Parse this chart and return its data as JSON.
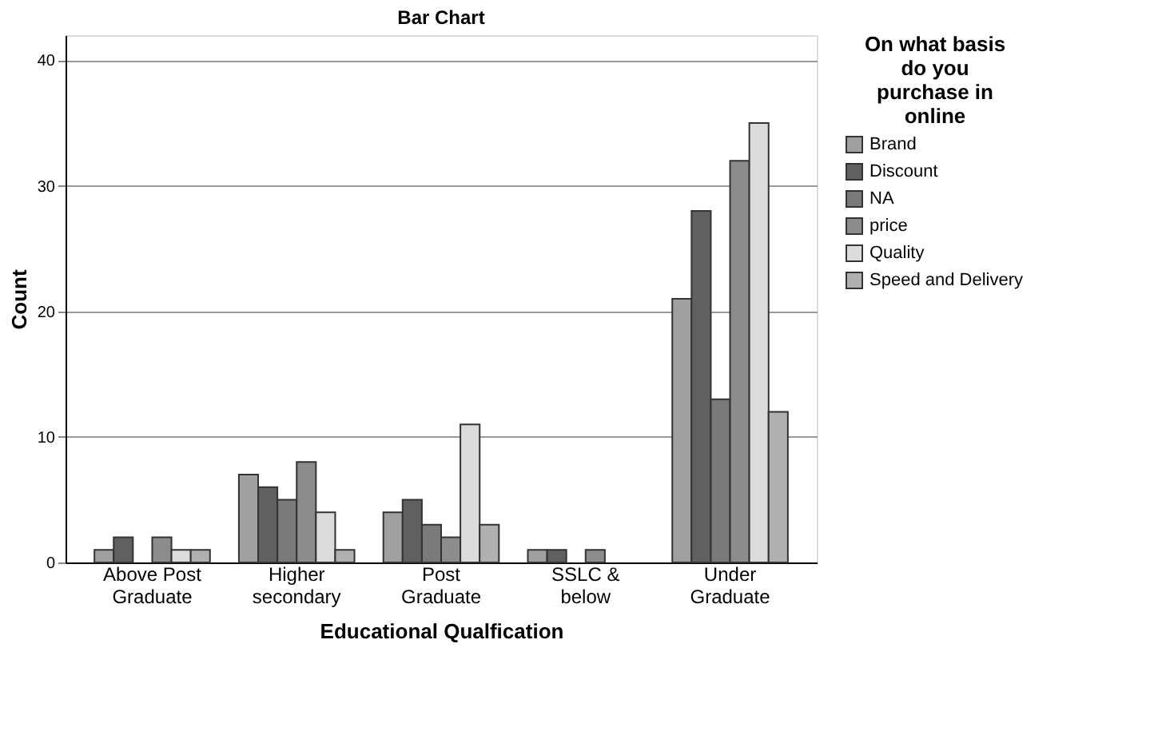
{
  "chart_data": {
    "type": "bar",
    "title": "Bar Chart",
    "xlabel": "Educational Qualfication",
    "ylabel": "Count",
    "legend_title": "On what basis do you purchase in online",
    "categories": [
      "Above Post Graduate",
      "Higher secondary",
      "Post Graduate",
      "SSLC & below",
      "Under Graduate"
    ],
    "series": [
      {
        "name": "Brand",
        "color": "#a0a0a0",
        "values": [
          1,
          7,
          4,
          1,
          21
        ]
      },
      {
        "name": "Discount",
        "color": "#606060",
        "values": [
          2,
          6,
          5,
          1,
          28
        ]
      },
      {
        "name": "NA",
        "color": "#7a7a7a",
        "values": [
          0,
          5,
          3,
          0,
          13
        ]
      },
      {
        "name": "price",
        "color": "#8c8c8c",
        "values": [
          2,
          8,
          2,
          1,
          32
        ]
      },
      {
        "name": "Quality",
        "color": "#dcdcdc",
        "values": [
          1,
          4,
          11,
          0,
          35
        ]
      },
      {
        "name": "Speed and Delivery",
        "color": "#b0b0b0",
        "values": [
          1,
          1,
          3,
          0,
          12
        ]
      }
    ],
    "ylim": [
      0,
      42
    ],
    "yticks": [
      0,
      10,
      20,
      30,
      40
    ],
    "grid": "y",
    "legend": "top right"
  }
}
